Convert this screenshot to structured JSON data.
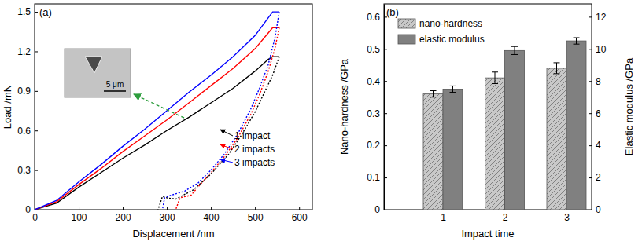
{
  "chart_data": [
    {
      "type": "line",
      "title": "(a)",
      "x_label": "Displacement /nm",
      "y_label": "Load /mN",
      "xlim": [
        0,
        630
      ],
      "xticks": [
        0,
        100,
        200,
        300,
        400,
        500,
        600
      ],
      "ylim": [
        0,
        1.56
      ],
      "yticks": [
        0,
        0.3,
        0.6,
        0.9,
        1.2,
        1.5
      ],
      "annotations": [
        {
          "text": "5 μm"
        }
      ],
      "series": [
        {
          "name": "1 impact",
          "color": "#000000",
          "line_style": "solid",
          "x": [
            0,
            50,
            100,
            150,
            200,
            250,
            300,
            350,
            400,
            450,
            500,
            530,
            540,
            555
          ],
          "values": [
            0,
            0.05,
            0.17,
            0.28,
            0.39,
            0.49,
            0.6,
            0.7,
            0.81,
            0.92,
            1.05,
            1.14,
            1.16,
            1.16
          ]
        },
        {
          "color": "#000000",
          "line_style": "dotted",
          "x": [
            555,
            540,
            520,
            500,
            470,
            440,
            400,
            360,
            320,
            300,
            290,
            280
          ],
          "values": [
            1.16,
            1.02,
            0.88,
            0.74,
            0.57,
            0.42,
            0.27,
            0.15,
            0.08,
            0.09,
            0.1,
            0
          ]
        },
        {
          "name": "2 impacts",
          "color": "#ff0000",
          "line_style": "solid",
          "x": [
            0,
            50,
            100,
            150,
            200,
            250,
            300,
            350,
            400,
            450,
            500,
            530,
            540,
            555
          ],
          "values": [
            0,
            0.06,
            0.19,
            0.31,
            0.44,
            0.56,
            0.68,
            0.81,
            0.94,
            1.07,
            1.22,
            1.34,
            1.38,
            1.38
          ]
        },
        {
          "color": "#ff0000",
          "line_style": "dotted",
          "x": [
            555,
            545,
            530,
            510,
            490,
            460,
            430,
            400,
            370,
            355,
            330,
            320
          ],
          "values": [
            1.38,
            1.22,
            1.05,
            0.87,
            0.72,
            0.54,
            0.4,
            0.28,
            0.17,
            0.11,
            0.09,
            0
          ]
        },
        {
          "name": "3 impacts",
          "color": "#0000ff",
          "line_style": "solid",
          "x": [
            0,
            50,
            100,
            150,
            200,
            250,
            300,
            350,
            400,
            450,
            500,
            540,
            555
          ],
          "values": [
            0,
            0.07,
            0.21,
            0.34,
            0.48,
            0.61,
            0.75,
            0.89,
            1.02,
            1.16,
            1.32,
            1.5,
            1.5
          ]
        },
        {
          "color": "#0000ff",
          "line_style": "dotted",
          "x": [
            555,
            545,
            530,
            510,
            490,
            460,
            430,
            400,
            370,
            340,
            310,
            295,
            290
          ],
          "values": [
            1.5,
            1.3,
            1.1,
            0.92,
            0.76,
            0.57,
            0.42,
            0.3,
            0.2,
            0.14,
            0.11,
            0.09,
            0
          ]
        }
      ]
    },
    {
      "type": "bar",
      "title": "(b)",
      "x_label": "Impact time",
      "y_label": "Nano-hardness /GPa",
      "y2_label": "Elastic modulus /GPa",
      "legend": "upper left",
      "categories": [
        "1",
        "2",
        "3"
      ],
      "ylim": [
        0,
        0.64
      ],
      "yticks": [
        0,
        0.1,
        0.2,
        0.3,
        0.4,
        0.5,
        0.6
      ],
      "y2lim": [
        0,
        12.8
      ],
      "y2ticks": [
        0,
        2,
        4,
        6,
        8,
        10,
        12
      ],
      "series": [
        {
          "name": "nano-hardness",
          "color": "#c8c8c8",
          "values": [
            0.36,
            0.41,
            0.44
          ],
          "errors": [
            0.01,
            0.018,
            0.017
          ]
        },
        {
          "name": "elastic modulus",
          "color": "#808080",
          "axis": "y2",
          "values": [
            7.5,
            9.9,
            10.5
          ],
          "errors": [
            0.2,
            0.25,
            0.2
          ]
        }
      ]
    }
  ]
}
